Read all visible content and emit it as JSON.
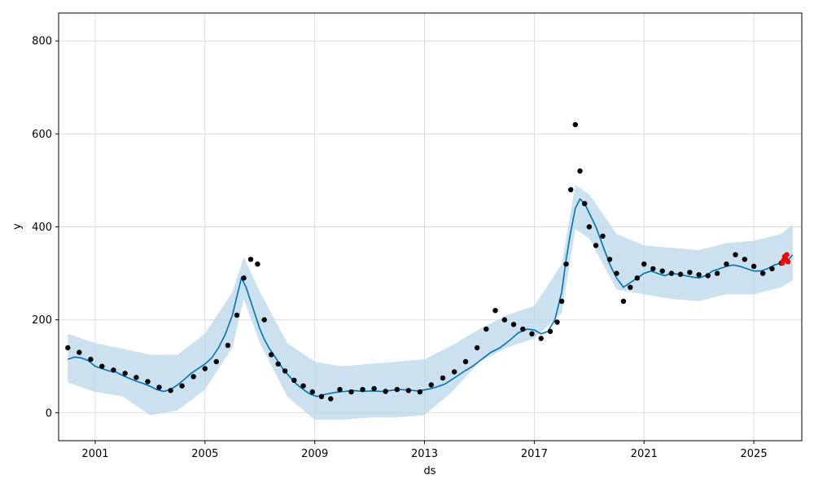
{
  "chart_data": {
    "type": "scatter",
    "title": "",
    "xlabel": "ds",
    "ylabel": "y",
    "xlim": [
      "1999-09-01",
      "2026-10-01"
    ],
    "ylim": [
      -60,
      860
    ],
    "x_ticks": [
      "2001",
      "2005",
      "2009",
      "2013",
      "2017",
      "2021",
      "2025"
    ],
    "y_ticks": [
      0,
      200,
      400,
      600,
      800
    ],
    "grid": true,
    "colors": {
      "observed": "#000000",
      "forecast_line": "#0072B2",
      "uncertainty_band": "#B9D7EA",
      "highlight": "#FF0000"
    },
    "series": [
      {
        "x": [
          "2000-01-01",
          "2000-04-01",
          "2000-07-01",
          "2000-10-01",
          "2001-01-01",
          "2001-04-01",
          "2001-07-01",
          "2001-10-01",
          "2002-01-01",
          "2002-04-01",
          "2002-07-01",
          "2002-10-01",
          "2003-01-01",
          "2003-04-01",
          "2003-07-01",
          "2003-10-01",
          "2004-01-01",
          "2004-04-01",
          "2004-07-01",
          "2004-10-01",
          "2005-01-01",
          "2005-04-01",
          "2005-07-01",
          "2005-10-01",
          "2006-01-01",
          "2006-03-01",
          "2006-05-01",
          "2006-07-01",
          "2006-09-01",
          "2006-11-01",
          "2007-01-01",
          "2007-03-01",
          "2007-05-01",
          "2007-08-01",
          "2007-11-01",
          "2008-02-01",
          "2008-05-01",
          "2008-08-01",
          "2008-11-01",
          "2009-02-01",
          "2009-06-01",
          "2009-10-01",
          "2010-02-01",
          "2010-06-01",
          "2010-10-01",
          "2011-02-01",
          "2011-06-01",
          "2011-10-01",
          "2012-02-01",
          "2012-06-01",
          "2012-10-01",
          "2013-02-01",
          "2013-06-01",
          "2013-10-01",
          "2014-02-01",
          "2014-06-01",
          "2014-10-01",
          "2015-02-01",
          "2015-06-01",
          "2015-10-01",
          "2016-02-01",
          "2016-06-01",
          "2016-10-01",
          "2017-01-01",
          "2017-04-01",
          "2017-07-01",
          "2017-10-01",
          "2018-01-01",
          "2018-03-01",
          "2018-05-01",
          "2018-07-01",
          "2018-09-01",
          "2018-11-01",
          "2019-01-01",
          "2019-04-01",
          "2019-07-01",
          "2019-10-01",
          "2020-01-01",
          "2020-04-01",
          "2020-07-01",
          "2020-10-01",
          "2021-01-01",
          "2021-04-01",
          "2021-07-01",
          "2021-10-01",
          "2022-01-01",
          "2022-04-01",
          "2022-07-01",
          "2022-10-01",
          "2023-01-01",
          "2023-04-01",
          "2023-07-01",
          "2023-10-01",
          "2024-01-01",
          "2024-04-01",
          "2024-07-01",
          "2024-10-01",
          "2025-01-01",
          "2025-04-01",
          "2025-07-01",
          "2025-10-01",
          "2026-01-01",
          "2026-04-01",
          "2026-06-01"
        ],
        "y": [
          115,
          120,
          118,
          112,
          100,
          95,
          90,
          88,
          80,
          74,
          68,
          63,
          57,
          50,
          46,
          50,
          60,
          72,
          85,
          95,
          105,
          118,
          140,
          170,
          210,
          250,
          290,
          270,
          240,
          210,
          180,
          158,
          140,
          118,
          95,
          78,
          62,
          50,
          40,
          35,
          40,
          44,
          46,
          48,
          46,
          47,
          46,
          48,
          50,
          49,
          47,
          50,
          55,
          62,
          75,
          88,
          100,
          115,
          130,
          140,
          155,
          172,
          180,
          178,
          170,
          175,
          200,
          260,
          330,
          390,
          440,
          460,
          450,
          430,
          400,
          360,
          320,
          290,
          270,
          280,
          290,
          300,
          305,
          300,
          295,
          300,
          298,
          295,
          292,
          290,
          295,
          305,
          310,
          315,
          318,
          315,
          310,
          305,
          305,
          310,
          318,
          322,
          328,
          340
        ]
      },
      {
        "x": [
          "2000-01-01",
          "2000-06-01",
          "2000-11-01",
          "2001-04-01",
          "2001-09-01",
          "2002-02-01",
          "2002-07-01",
          "2002-12-01",
          "2003-05-01",
          "2003-10-01",
          "2004-03-01",
          "2004-08-01",
          "2005-01-01",
          "2005-06-01",
          "2005-11-01",
          "2006-03-01",
          "2006-06-01",
          "2006-09-01",
          "2006-12-01",
          "2007-03-01",
          "2007-06-01",
          "2007-09-01",
          "2007-12-01",
          "2008-04-01",
          "2008-08-01",
          "2008-12-01",
          "2009-04-01",
          "2009-08-01",
          "2009-12-01",
          "2010-05-01",
          "2010-10-01",
          "2011-03-01",
          "2011-08-01",
          "2012-01-01",
          "2012-06-01",
          "2012-11-01",
          "2013-04-01",
          "2013-09-01",
          "2014-02-01",
          "2014-07-01",
          "2014-12-01",
          "2015-04-01",
          "2015-08-01",
          "2015-12-01",
          "2016-04-01",
          "2016-08-01",
          "2016-12-01",
          "2017-04-01",
          "2017-08-01",
          "2017-11-01",
          "2018-01-01",
          "2018-03-01",
          "2018-05-01",
          "2018-07-01",
          "2018-09-01",
          "2018-11-01",
          "2019-01-01",
          "2019-04-01",
          "2019-07-01",
          "2019-10-01",
          "2020-01-01",
          "2020-04-01",
          "2020-07-01",
          "2020-10-01",
          "2021-01-01",
          "2021-05-01",
          "2021-09-01",
          "2022-01-01",
          "2022-05-01",
          "2022-09-01",
          "2023-01-01",
          "2023-05-01",
          "2023-09-01",
          "2024-01-01",
          "2024-05-01",
          "2024-09-01",
          "2025-01-01",
          "2025-05-01",
          "2025-09-01",
          "2026-01-01",
          "2026-03-01"
        ],
        "y": [
          140,
          130,
          115,
          100,
          92,
          85,
          76,
          67,
          55,
          48,
          58,
          78,
          95,
          110,
          145,
          210,
          290,
          330,
          320,
          200,
          125,
          105,
          90,
          70,
          58,
          45,
          35,
          30,
          50,
          45,
          50,
          52,
          46,
          50,
          48,
          45,
          60,
          75,
          88,
          110,
          140,
          180,
          220,
          200,
          190,
          180,
          170,
          160,
          175,
          195,
          240,
          320,
          480,
          620,
          520,
          450,
          400,
          360,
          380,
          330,
          300,
          240,
          270,
          290,
          320,
          310,
          305,
          300,
          298,
          302,
          297,
          295,
          300,
          320,
          340,
          330,
          315,
          300,
          310,
          322,
          330
        ]
      },
      {
        "x": [
          "2026-01-15",
          "2026-02-01",
          "2026-02-15",
          "2026-03-01",
          "2026-03-15",
          "2026-04-01"
        ],
        "y": [
          322,
          328,
          336,
          330,
          340,
          325
        ]
      }
    ],
    "uncertainty_band": {
      "x": [
        "2000-01-01",
        "2001-01-01",
        "2002-01-01",
        "2003-01-01",
        "2004-01-01",
        "2005-01-01",
        "2006-01-01",
        "2006-06-01",
        "2007-01-01",
        "2008-01-01",
        "2009-01-01",
        "2010-01-01",
        "2011-01-01",
        "2012-01-01",
        "2013-01-01",
        "2014-01-01",
        "2015-01-01",
        "2016-01-01",
        "2017-01-01",
        "2018-01-01",
        "2018-07-01",
        "2019-01-01",
        "2020-01-01",
        "2021-01-01",
        "2022-01-01",
        "2023-01-01",
        "2024-01-01",
        "2025-01-01",
        "2026-01-01",
        "2026-06-01"
      ],
      "upper": [
        170,
        150,
        138,
        125,
        125,
        170,
        260,
        335,
        260,
        150,
        110,
        100,
        105,
        110,
        115,
        145,
        180,
        210,
        230,
        320,
        490,
        470,
        385,
        360,
        355,
        350,
        365,
        370,
        385,
        405
      ],
      "lower": [
        65,
        45,
        35,
        -5,
        5,
        50,
        140,
        245,
        150,
        35,
        -15,
        -15,
        -10,
        -10,
        -5,
        45,
        110,
        140,
        160,
        215,
        395,
        375,
        265,
        255,
        245,
        240,
        255,
        255,
        270,
        285
      ]
    }
  }
}
